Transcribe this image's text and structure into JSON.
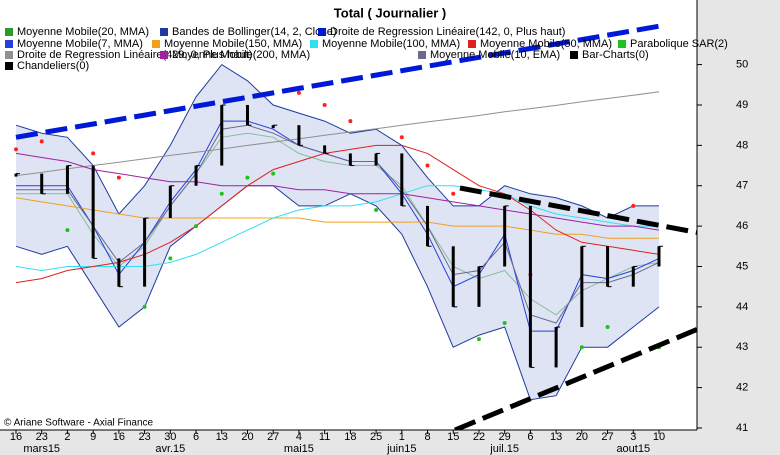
{
  "chart_data": {
    "type": "financial",
    "title": "Total  ( Journalier )",
    "footer": "© Ariane Software - Axial Finance",
    "categories": [
      "16",
      "23",
      "2",
      "9",
      "16",
      "23",
      "30",
      "6",
      "13",
      "20",
      "27",
      "4",
      "11",
      "18",
      "25",
      "1",
      "8",
      "15",
      "22",
      "29",
      "6",
      "13",
      "20",
      "27",
      "3",
      "10"
    ],
    "months": [
      null,
      "mars15",
      null,
      null,
      null,
      null,
      "avr.15",
      null,
      null,
      null,
      null,
      "mai15",
      null,
      null,
      null,
      "juin15",
      null,
      null,
      null,
      "juil.15",
      null,
      null,
      null,
      null,
      "aout15",
      null
    ],
    "ylim": [
      40.95,
      51.6
    ],
    "yticks": [
      41,
      42,
      43,
      44,
      45,
      46,
      47,
      48,
      49,
      50
    ],
    "grid": false,
    "series": [
      {
        "name": "Moyenne Mobile(20, MMA)",
        "kind": "line",
        "color": "#2e9a2e",
        "values": [
          46.8,
          46.8,
          46.8,
          45.8,
          45.0,
          45.5,
          46.5,
          47.3,
          48.2,
          48.3,
          48.2,
          47.8,
          47.6,
          47.5,
          47.5,
          47.0,
          46.0,
          45.0,
          44.7,
          44.9,
          44.2,
          43.8,
          44.4,
          44.7,
          45.0,
          45.1
        ]
      },
      {
        "name": "Bandes de Bollinger(14, 2, Close)",
        "kind": "band",
        "color": "#1f3a9e",
        "upper": [
          48.5,
          48.3,
          48.2,
          47.5,
          46.3,
          47.0,
          48.0,
          49.2,
          50.0,
          49.6,
          49.0,
          48.8,
          48.6,
          48.3,
          48.4,
          48.0,
          47.2,
          46.5,
          46.5,
          47.0,
          46.8,
          46.7,
          46.5,
          46.2,
          46.5,
          46.5
        ],
        "lower": [
          45.5,
          45.3,
          45.5,
          44.5,
          43.5,
          44.0,
          45.5,
          46.0,
          46.5,
          47.0,
          47.0,
          46.5,
          46.5,
          46.8,
          46.5,
          45.8,
          44.5,
          43.0,
          43.3,
          43.5,
          41.7,
          41.8,
          43.0,
          43.0,
          43.5,
          44.0
        ]
      },
      {
        "name": "Droite de Regression Linéaire(142, 0, Plus haut)",
        "kind": "dashed",
        "color": "#0018d8",
        "values": [
          48.2,
          48.31,
          48.42,
          48.53,
          48.64,
          48.75,
          48.86,
          48.97,
          49.08,
          49.19,
          49.3,
          49.41,
          49.52,
          49.63,
          49.74,
          49.85,
          49.96,
          50.07,
          50.18,
          50.29,
          50.4,
          50.51,
          50.62,
          50.73,
          50.84,
          50.95
        ]
      },
      {
        "name": "Moyenne Mobile(7, MMA)",
        "kind": "line",
        "color": "#2340e0",
        "values": [
          47.0,
          47.0,
          47.0,
          46.0,
          44.8,
          45.6,
          46.6,
          47.4,
          48.6,
          48.6,
          48.4,
          48.0,
          47.8,
          47.6,
          47.6,
          46.8,
          45.8,
          44.5,
          44.8,
          45.8,
          43.4,
          43.4,
          44.8,
          44.7,
          44.9,
          45.2
        ]
      },
      {
        "name": "Moyenne Mobile(150, MMA)",
        "kind": "line",
        "color": "#f0a020",
        "values": [
          46.7,
          46.6,
          46.5,
          46.4,
          46.3,
          46.2,
          46.2,
          46.2,
          46.2,
          46.2,
          46.2,
          46.2,
          46.1,
          46.1,
          46.1,
          46.1,
          46.1,
          46.0,
          46.0,
          46.0,
          45.9,
          45.8,
          45.8,
          45.7,
          45.7,
          45.7
        ]
      },
      {
        "name": "Moyenne Mobile(100, MMA)",
        "kind": "line",
        "color": "#30e0f0",
        "values": [
          45.0,
          44.9,
          45.0,
          45.0,
          45.0,
          45.0,
          45.1,
          45.3,
          45.6,
          45.9,
          46.2,
          46.4,
          46.5,
          46.5,
          46.6,
          46.8,
          47.0,
          47.0,
          46.9,
          46.8,
          46.5,
          46.3,
          46.2,
          46.1,
          46.0,
          46.0
        ]
      },
      {
        "name": "Moyenne Mobile(50, MMA)",
        "kind": "line",
        "color": "#e02020",
        "values": [
          44.6,
          44.7,
          44.9,
          45.0,
          45.1,
          45.3,
          45.6,
          46.0,
          46.5,
          47.0,
          47.4,
          47.6,
          47.8,
          47.9,
          48.0,
          48.0,
          47.8,
          47.4,
          47.0,
          46.8,
          46.4,
          45.9,
          45.6,
          45.5,
          45.4,
          45.3
        ]
      },
      {
        "name": "Parabolique SAR(2)",
        "kind": "sar",
        "color": "#20c020",
        "color_above": "#ff2020",
        "values": [
          47.9,
          48.1,
          45.9,
          47.8,
          47.2,
          44.0,
          45.2,
          46.0,
          46.8,
          47.2,
          47.3,
          49.3,
          49.0,
          48.6,
          46.4,
          48.2,
          47.5,
          46.8,
          43.2,
          43.6,
          44.8,
          42.0,
          43.0,
          43.5,
          46.5,
          43.0
        ]
      },
      {
        "name": "Droite de Regression Linéaire(429, 0, Plus haut)",
        "kind": "line",
        "color": "#909090",
        "values": [
          47.25,
          47.33,
          47.42,
          47.5,
          47.58,
          47.67,
          47.75,
          47.83,
          47.91,
          48.0,
          48.08,
          48.16,
          48.25,
          48.33,
          48.41,
          48.5,
          48.58,
          48.66,
          48.74,
          48.83,
          48.91,
          48.99,
          49.08,
          49.16,
          49.24,
          49.33
        ]
      },
      {
        "name": "Moyenne Mobile(200, MMA)",
        "kind": "line",
        "color": "#a020a0",
        "values": [
          47.8,
          47.7,
          47.6,
          47.4,
          47.3,
          47.2,
          47.1,
          47.1,
          47.0,
          47.0,
          47.0,
          46.9,
          46.9,
          46.8,
          46.8,
          46.8,
          46.7,
          46.6,
          46.5,
          46.4,
          46.3,
          46.2,
          46.1,
          46.0,
          46.0,
          45.9
        ]
      },
      {
        "name": "Moyenne Mobile(10, EMA)",
        "kind": "line",
        "color": "#6a6a8a",
        "values": [
          46.9,
          46.9,
          46.9,
          46.0,
          45.1,
          45.6,
          46.5,
          47.3,
          48.4,
          48.5,
          48.3,
          48.0,
          47.8,
          47.6,
          47.6,
          46.9,
          46.0,
          44.8,
          44.9,
          45.6,
          43.8,
          43.6,
          44.6,
          44.6,
          44.8,
          45.1
        ]
      },
      {
        "name": "Bar-Charts(0)",
        "kind": "ticks",
        "color": "#000000",
        "values": [
          47.3,
          46.8,
          47.5,
          45.2,
          44.5,
          46.2,
          47.0,
          47.5,
          49.0,
          48.5,
          48.5,
          48.0,
          47.8,
          47.5,
          47.8,
          46.5,
          45.5,
          44.0,
          45.0,
          46.5,
          42.5,
          43.5,
          45.5,
          44.5,
          45.0,
          45.5
        ]
      },
      {
        "name": "Chandeliers(0)",
        "kind": "candles",
        "color": "#000000",
        "values": [
          47.3,
          46.8,
          47.5,
          45.2,
          44.5,
          46.2,
          47.0,
          47.5,
          49.0,
          48.5,
          48.5,
          48.0,
          47.8,
          47.5,
          47.8,
          46.5,
          45.5,
          44.0,
          45.0,
          46.5,
          42.5,
          43.5,
          45.5,
          44.5,
          45.0,
          45.5
        ]
      }
    ]
  }
}
